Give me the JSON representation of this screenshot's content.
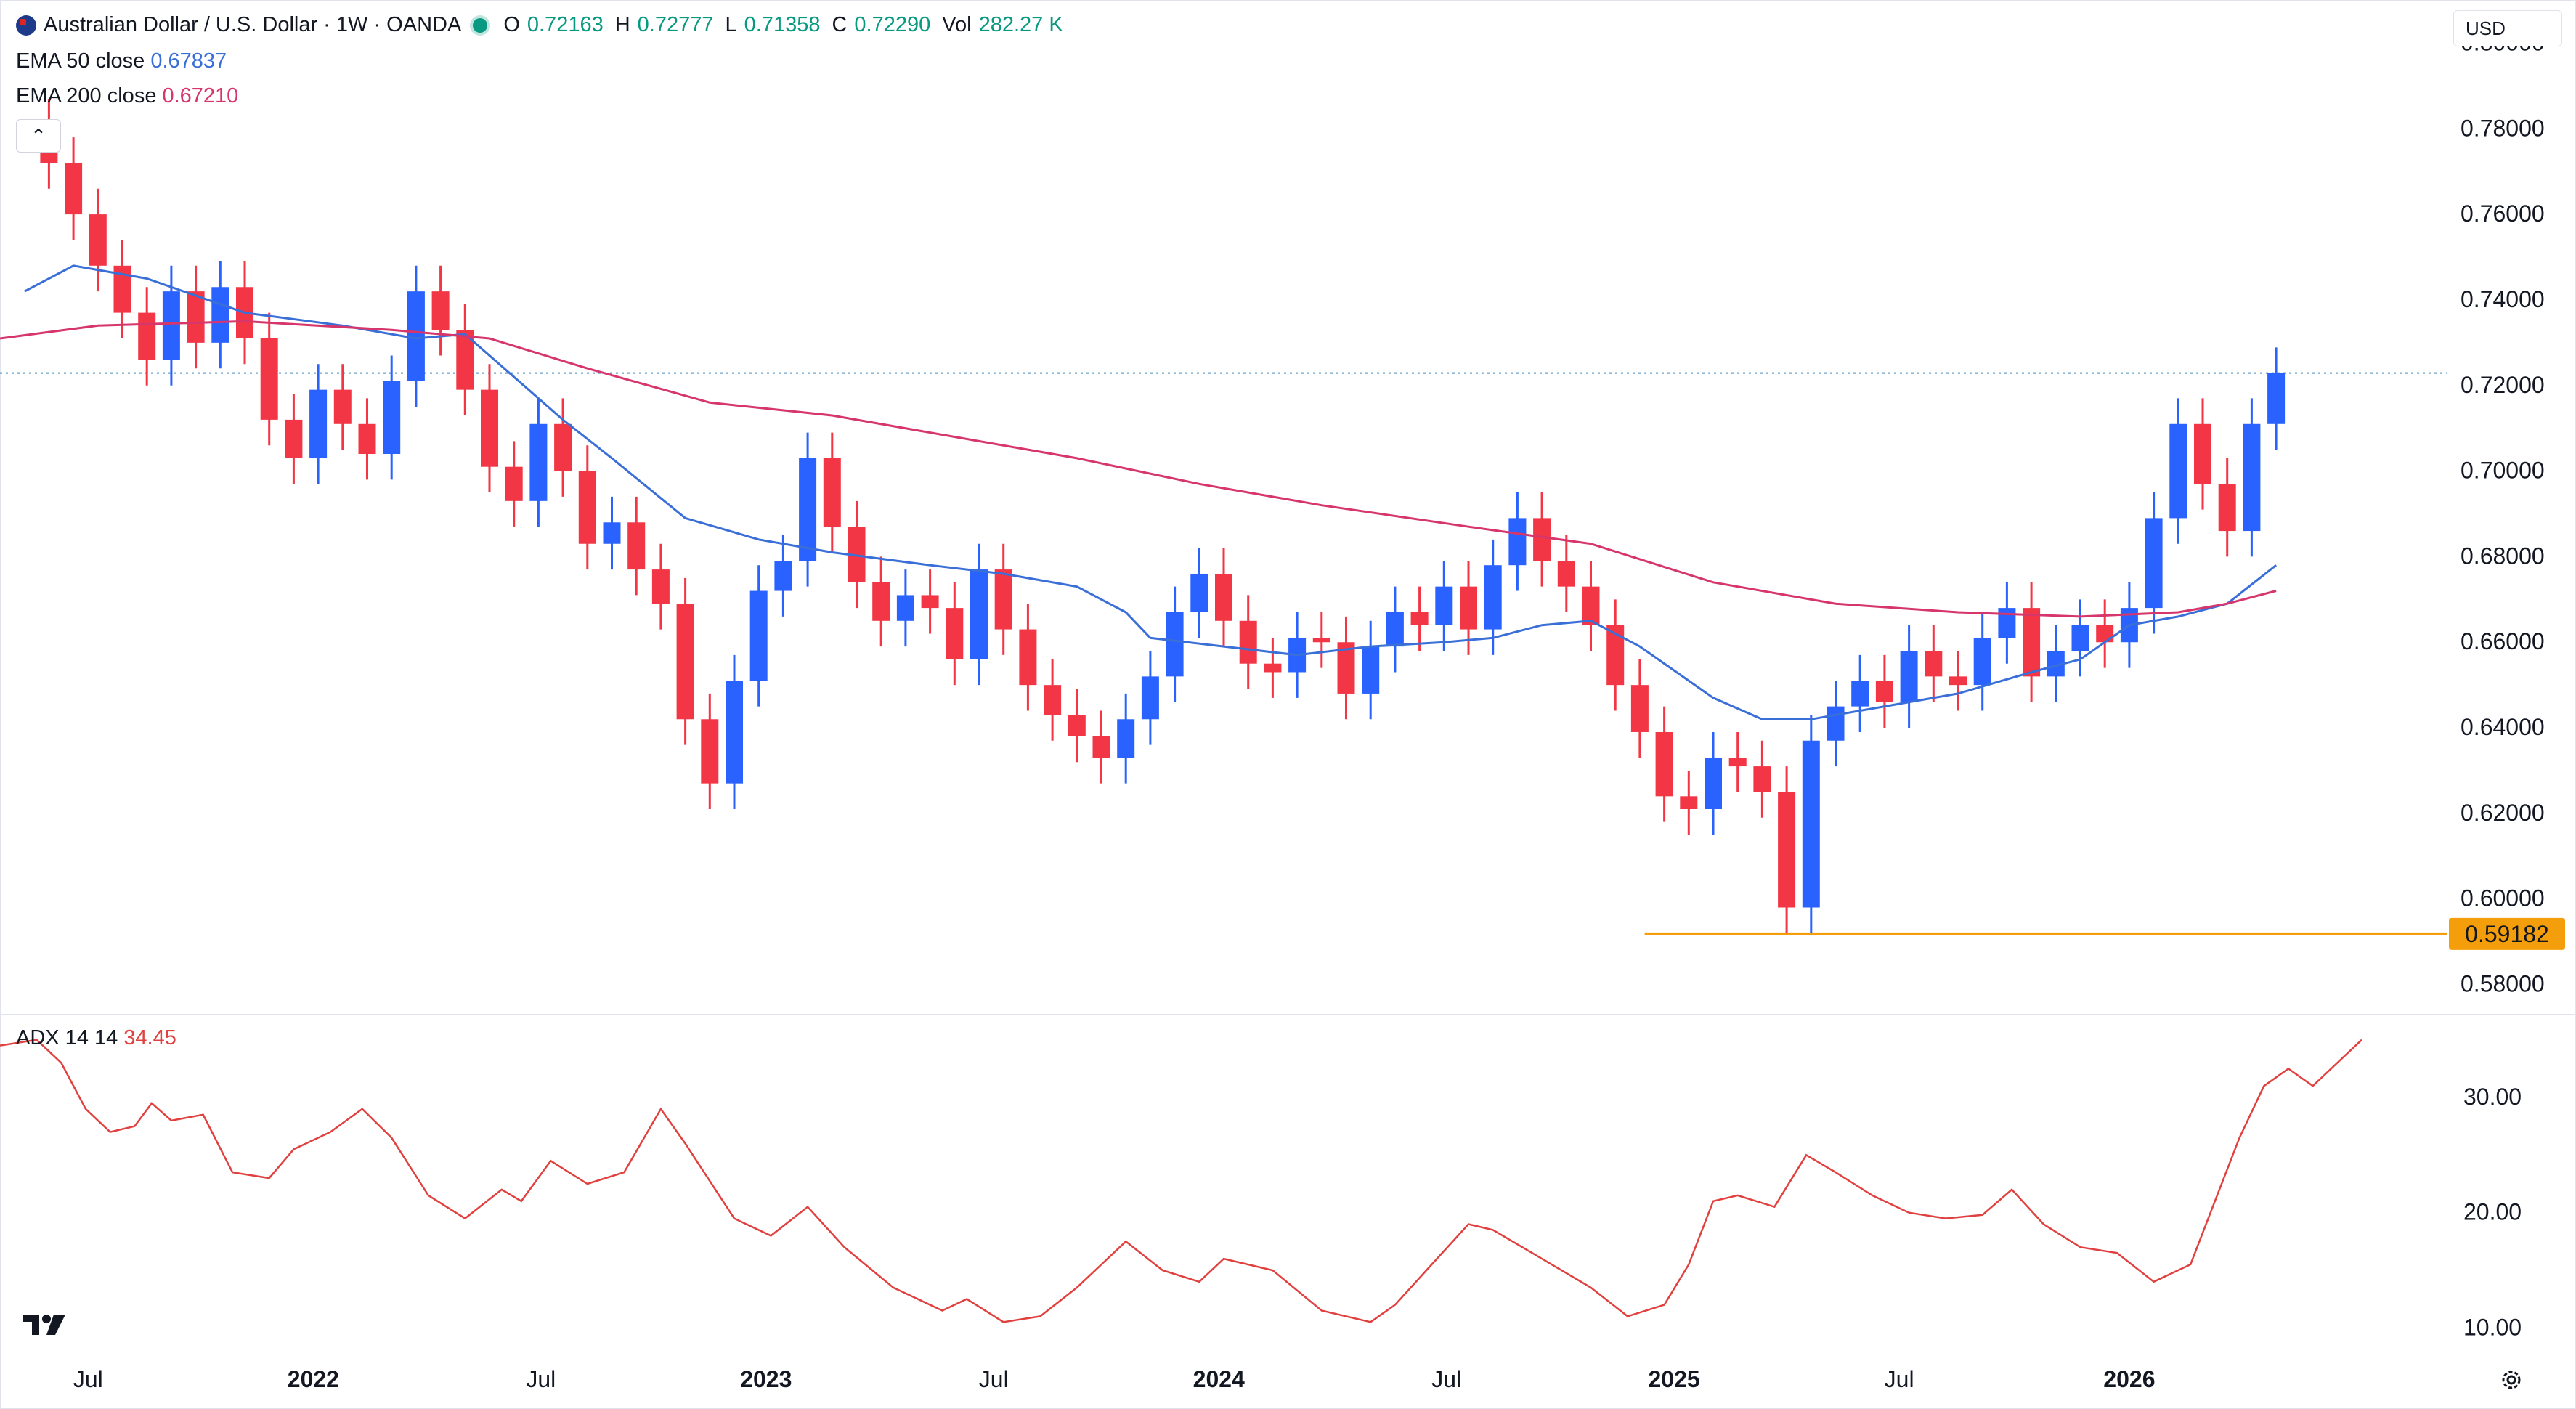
{
  "header": {
    "symbol_title": "Australian Dollar / U.S. Dollar · 1W · OANDA",
    "ohlc": [
      {
        "label": "O",
        "value": "0.72163"
      },
      {
        "label": "H",
        "value": "0.72777"
      },
      {
        "label": "L",
        "value": "0.71358"
      },
      {
        "label": "C",
        "value": "0.72290"
      },
      {
        "label": "Vol",
        "value": "282.27 K"
      }
    ]
  },
  "indicators": {
    "ema50": {
      "label": "EMA 50 close",
      "value": "0.67837",
      "color": "#3b6fd8"
    },
    "ema200": {
      "label": "EMA 200 close",
      "value": "0.67210",
      "color": "#d6366b"
    },
    "adx": {
      "label": "ADX 14 14",
      "value": "34.45",
      "color": "#e0413f"
    }
  },
  "currency_selector": "USD",
  "icons": {
    "logo": "tradingview-logo-icon",
    "settings": "gear-icon",
    "collapse": "chevron-up-icon",
    "symbol": "au-flag-icon",
    "market_status": "market-open-dot-icon"
  },
  "colors": {
    "up": "#2962ff",
    "down": "#f23645",
    "last_price_line": "#4a90c2",
    "support_line": "#f59e0b"
  },
  "chart_data": [
    {
      "type": "candlestick",
      "title": "",
      "y_axis": {
        "side": "right",
        "ylim": [
          0.575,
          0.805
        ],
        "tick_labels": [
          "0.80000",
          "0.78000",
          "0.76000",
          "0.74000",
          "0.72000",
          "0.70000",
          "0.68000",
          "0.66000",
          "0.64000",
          "0.62000",
          "0.60000",
          "0.58000"
        ]
      },
      "x_axis": {
        "tick_labels": [
          "Jul",
          "2022",
          "Jul",
          "2023",
          "Jul",
          "2024",
          "Jul",
          "2025",
          "Jul",
          "2026"
        ]
      },
      "support_level": {
        "value": 0.59182,
        "label": "0.59182"
      },
      "last_price": 0.7229,
      "series": [
        {
          "name": "EMA 50 close",
          "points": [
            [
              0.01,
              0.742
            ],
            [
              0.03,
              0.748
            ],
            [
              0.06,
              0.745
            ],
            [
              0.1,
              0.737
            ],
            [
              0.14,
              0.734
            ],
            [
              0.17,
              0.731
            ],
            [
              0.19,
              0.732
            ],
            [
              0.2,
              0.727
            ],
            [
              0.23,
              0.712
            ],
            [
              0.25,
              0.703
            ],
            [
              0.28,
              0.689
            ],
            [
              0.31,
              0.684
            ],
            [
              0.34,
              0.681
            ],
            [
              0.38,
              0.678
            ],
            [
              0.41,
              0.676
            ],
            [
              0.44,
              0.673
            ],
            [
              0.46,
              0.667
            ],
            [
              0.47,
              0.661
            ],
            [
              0.5,
              0.659
            ],
            [
              0.53,
              0.657
            ],
            [
              0.56,
              0.659
            ],
            [
              0.59,
              0.66
            ],
            [
              0.61,
              0.661
            ],
            [
              0.63,
              0.664
            ],
            [
              0.65,
              0.665
            ],
            [
              0.67,
              0.659
            ],
            [
              0.7,
              0.647
            ],
            [
              0.72,
              0.642
            ],
            [
              0.74,
              0.642
            ],
            [
              0.77,
              0.645
            ],
            [
              0.8,
              0.648
            ],
            [
              0.83,
              0.653
            ],
            [
              0.85,
              0.656
            ],
            [
              0.87,
              0.664
            ],
            [
              0.89,
              0.666
            ],
            [
              0.91,
              0.669
            ],
            [
              0.93,
              0.678
            ]
          ]
        },
        {
          "name": "EMA 200 close",
          "points": [
            [
              0.0,
              0.731
            ],
            [
              0.04,
              0.734
            ],
            [
              0.1,
              0.735
            ],
            [
              0.16,
              0.733
            ],
            [
              0.2,
              0.731
            ],
            [
              0.24,
              0.724
            ],
            [
              0.29,
              0.716
            ],
            [
              0.34,
              0.713
            ],
            [
              0.39,
              0.708
            ],
            [
              0.44,
              0.703
            ],
            [
              0.49,
              0.697
            ],
            [
              0.54,
              0.692
            ],
            [
              0.6,
              0.687
            ],
            [
              0.65,
              0.683
            ],
            [
              0.7,
              0.674
            ],
            [
              0.75,
              0.669
            ],
            [
              0.8,
              0.667
            ],
            [
              0.85,
              0.666
            ],
            [
              0.89,
              0.667
            ],
            [
              0.91,
              0.669
            ],
            [
              0.93,
              0.672
            ]
          ]
        },
        {
          "name": "price_close",
          "points": [
            [
              0.01,
              0.781
            ],
            [
              0.02,
              0.772
            ],
            [
              0.03,
              0.76
            ],
            [
              0.04,
              0.748
            ],
            [
              0.05,
              0.737
            ],
            [
              0.06,
              0.726
            ],
            [
              0.07,
              0.742
            ],
            [
              0.08,
              0.73
            ],
            [
              0.09,
              0.743
            ],
            [
              0.1,
              0.731
            ],
            [
              0.11,
              0.712
            ],
            [
              0.12,
              0.703
            ],
            [
              0.13,
              0.719
            ],
            [
              0.14,
              0.711
            ],
            [
              0.15,
              0.704
            ],
            [
              0.16,
              0.721
            ],
            [
              0.17,
              0.742
            ],
            [
              0.18,
              0.733
            ],
            [
              0.19,
              0.719
            ],
            [
              0.2,
              0.701
            ],
            [
              0.21,
              0.693
            ],
            [
              0.22,
              0.711
            ],
            [
              0.23,
              0.7
            ],
            [
              0.24,
              0.683
            ],
            [
              0.25,
              0.688
            ],
            [
              0.26,
              0.677
            ],
            [
              0.27,
              0.669
            ],
            [
              0.28,
              0.642
            ],
            [
              0.29,
              0.627
            ],
            [
              0.3,
              0.651
            ],
            [
              0.31,
              0.672
            ],
            [
              0.32,
              0.679
            ],
            [
              0.33,
              0.703
            ],
            [
              0.34,
              0.687
            ],
            [
              0.35,
              0.674
            ],
            [
              0.36,
              0.665
            ],
            [
              0.37,
              0.671
            ],
            [
              0.38,
              0.668
            ],
            [
              0.39,
              0.656
            ],
            [
              0.4,
              0.677
            ],
            [
              0.41,
              0.663
            ],
            [
              0.42,
              0.65
            ],
            [
              0.43,
              0.643
            ],
            [
              0.44,
              0.638
            ],
            [
              0.45,
              0.633
            ],
            [
              0.46,
              0.642
            ],
            [
              0.47,
              0.652
            ],
            [
              0.48,
              0.667
            ],
            [
              0.49,
              0.676
            ],
            [
              0.5,
              0.665
            ],
            [
              0.51,
              0.655
            ],
            [
              0.52,
              0.653
            ],
            [
              0.53,
              0.661
            ],
            [
              0.54,
              0.66
            ],
            [
              0.55,
              0.648
            ],
            [
              0.56,
              0.659
            ],
            [
              0.57,
              0.667
            ],
            [
              0.58,
              0.664
            ],
            [
              0.59,
              0.673
            ],
            [
              0.6,
              0.663
            ],
            [
              0.61,
              0.678
            ],
            [
              0.62,
              0.689
            ],
            [
              0.63,
              0.679
            ],
            [
              0.64,
              0.673
            ],
            [
              0.65,
              0.664
            ],
            [
              0.66,
              0.65
            ],
            [
              0.67,
              0.639
            ],
            [
              0.68,
              0.624
            ],
            [
              0.69,
              0.621
            ],
            [
              0.7,
              0.633
            ],
            [
              0.71,
              0.631
            ],
            [
              0.72,
              0.625
            ],
            [
              0.73,
              0.598
            ],
            [
              0.74,
              0.637
            ],
            [
              0.75,
              0.645
            ],
            [
              0.76,
              0.651
            ],
            [
              0.77,
              0.646
            ],
            [
              0.78,
              0.658
            ],
            [
              0.79,
              0.652
            ],
            [
              0.8,
              0.65
            ],
            [
              0.81,
              0.661
            ],
            [
              0.82,
              0.668
            ],
            [
              0.83,
              0.652
            ],
            [
              0.84,
              0.658
            ],
            [
              0.85,
              0.664
            ],
            [
              0.86,
              0.66
            ],
            [
              0.87,
              0.668
            ],
            [
              0.88,
              0.689
            ],
            [
              0.89,
              0.711
            ],
            [
              0.9,
              0.697
            ],
            [
              0.91,
              0.686
            ],
            [
              0.92,
              0.711
            ],
            [
              0.93,
              0.7229
            ]
          ]
        }
      ]
    },
    {
      "type": "line",
      "title": "",
      "y_axis": {
        "side": "right",
        "ylim": [
          8,
          37
        ],
        "tick_labels": [
          "30.00",
          "20.00",
          "10.00"
        ]
      },
      "series": [
        {
          "name": "ADX 14 14",
          "points": [
            [
              0.0,
              34.5
            ],
            [
              0.015,
              35.0
            ],
            [
              0.025,
              33.0
            ],
            [
              0.035,
              29.0
            ],
            [
              0.045,
              27.0
            ],
            [
              0.055,
              27.5
            ],
            [
              0.062,
              29.5
            ],
            [
              0.07,
              28.0
            ],
            [
              0.083,
              28.5
            ],
            [
              0.095,
              23.5
            ],
            [
              0.11,
              23.0
            ],
            [
              0.12,
              25.5
            ],
            [
              0.135,
              27.0
            ],
            [
              0.148,
              29.0
            ],
            [
              0.16,
              26.5
            ],
            [
              0.175,
              21.5
            ],
            [
              0.19,
              19.5
            ],
            [
              0.205,
              22.0
            ],
            [
              0.213,
              21.0
            ],
            [
              0.225,
              24.5
            ],
            [
              0.24,
              22.5
            ],
            [
              0.255,
              23.5
            ],
            [
              0.27,
              29.0
            ],
            [
              0.28,
              26.0
            ],
            [
              0.3,
              19.5
            ],
            [
              0.315,
              18.0
            ],
            [
              0.33,
              20.5
            ],
            [
              0.345,
              17.0
            ],
            [
              0.365,
              13.5
            ],
            [
              0.385,
              11.5
            ],
            [
              0.395,
              12.5
            ],
            [
              0.41,
              10.5
            ],
            [
              0.425,
              11.0
            ],
            [
              0.44,
              13.5
            ],
            [
              0.46,
              17.5
            ],
            [
              0.475,
              15.0
            ],
            [
              0.49,
              14.0
            ],
            [
              0.5,
              16.0
            ],
            [
              0.52,
              15.0
            ],
            [
              0.54,
              11.5
            ],
            [
              0.56,
              10.5
            ],
            [
              0.57,
              12.0
            ],
            [
              0.585,
              15.5
            ],
            [
              0.6,
              19.0
            ],
            [
              0.61,
              18.5
            ],
            [
              0.63,
              16.0
            ],
            [
              0.65,
              13.5
            ],
            [
              0.665,
              11.0
            ],
            [
              0.68,
              12.0
            ],
            [
              0.69,
              15.5
            ],
            [
              0.7,
              21.0
            ],
            [
              0.71,
              21.5
            ],
            [
              0.725,
              20.5
            ],
            [
              0.738,
              25.0
            ],
            [
              0.75,
              23.5
            ],
            [
              0.765,
              21.5
            ],
            [
              0.78,
              20.0
            ],
            [
              0.795,
              19.5
            ],
            [
              0.81,
              19.8
            ],
            [
              0.822,
              22.0
            ],
            [
              0.835,
              19.0
            ],
            [
              0.85,
              17.0
            ],
            [
              0.865,
              16.5
            ],
            [
              0.88,
              14.0
            ],
            [
              0.895,
              15.5
            ],
            [
              0.905,
              21.0
            ],
            [
              0.915,
              26.5
            ],
            [
              0.925,
              31.0
            ],
            [
              0.935,
              32.5
            ],
            [
              0.945,
              31.0
            ],
            [
              0.955,
              33.0
            ],
            [
              0.965,
              35.0
            ]
          ]
        }
      ]
    }
  ]
}
